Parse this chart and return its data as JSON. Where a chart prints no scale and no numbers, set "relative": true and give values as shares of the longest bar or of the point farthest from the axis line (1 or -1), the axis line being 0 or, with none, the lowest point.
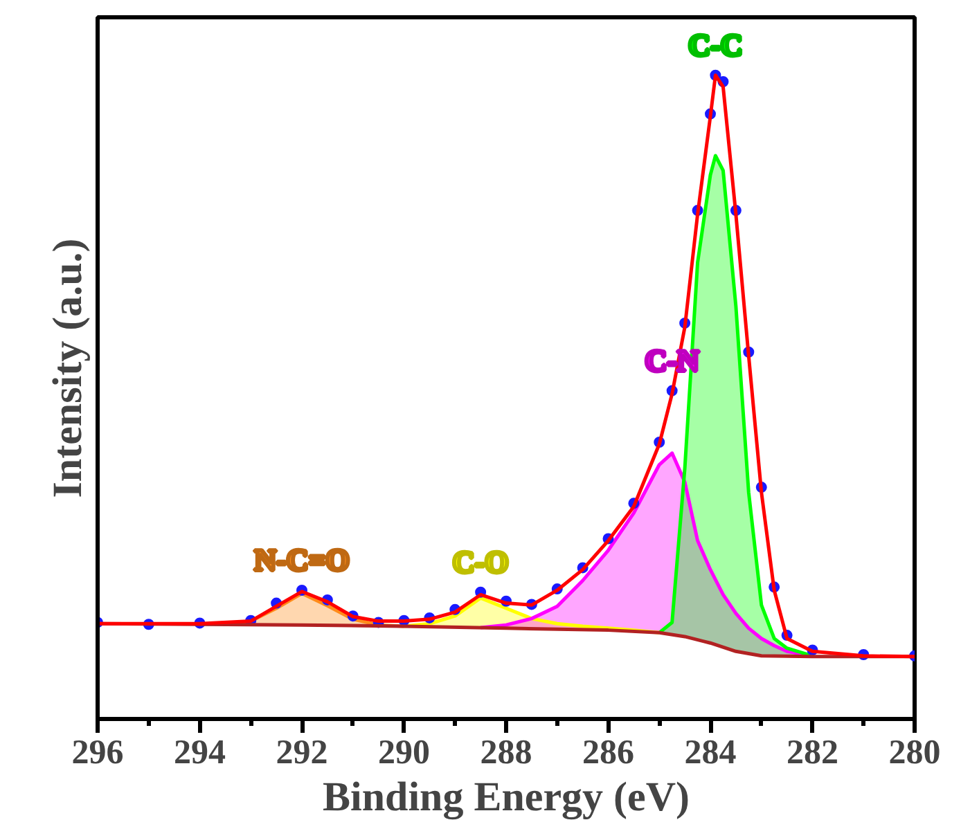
{
  "chart_data": {
    "type": "line",
    "xlabel": "Binding Energy (eV)",
    "ylabel": "Intensity (a.u.)",
    "relative": true,
    "xlim": [
      296,
      280
    ],
    "xticks": [
      296,
      294,
      292,
      290,
      288,
      286,
      284,
      282,
      280
    ],
    "tick_labels": "x",
    "grid": false,
    "series": [
      {
        "name": "N-C=O",
        "color": "#ff8c1a",
        "x": [
          293.5,
          293,
          292.5,
          292,
          291.5,
          291,
          290.5,
          290
        ],
        "values": [
          0.147,
          0.152,
          0.172,
          0.195,
          0.176,
          0.155,
          0.146,
          0.144
        ],
        "lower": [
          0.147,
          0.147,
          0.146,
          0.146,
          0.146,
          0.145,
          0.145,
          0.144
        ],
        "upper": [
          0.147,
          0.152,
          0.172,
          0.195,
          0.176,
          0.155,
          0.146,
          0.144
        ]
      },
      {
        "name": "C-O",
        "color": "#ffff00",
        "x": [
          290,
          289.5,
          289,
          288.5,
          288,
          287.5,
          287,
          286.5,
          286,
          285.5,
          285
        ],
        "values": [
          0.144,
          0.148,
          0.16,
          0.188,
          0.172,
          0.156,
          0.148,
          0.144,
          0.141,
          0.138,
          0.134
        ],
        "lower": [
          0.144,
          0.143,
          0.142,
          0.142,
          0.141,
          0.14,
          0.14,
          0.139,
          0.138,
          0.136,
          0.134
        ],
        "upper": [
          0.144,
          0.148,
          0.16,
          0.188,
          0.172,
          0.156,
          0.148,
          0.144,
          0.141,
          0.138,
          0.134
        ]
      },
      {
        "name": "C-N",
        "color": "#ff00ff",
        "x": [
          288.5,
          288,
          287.5,
          287,
          286.5,
          286,
          285.5,
          285,
          284.75,
          284.5,
          284.25,
          284,
          283.75,
          283.5,
          283.25,
          283,
          282.75,
          282.5,
          282
        ],
        "values": [
          0.142,
          0.146,
          0.156,
          0.175,
          0.215,
          0.262,
          0.32,
          0.395,
          0.413,
          0.368,
          0.277,
          0.232,
          0.193,
          0.164,
          0.141,
          0.125,
          0.114,
          0.105,
          0.098
        ],
        "lower": [
          0.142,
          0.141,
          0.14,
          0.14,
          0.139,
          0.138,
          0.136,
          0.134,
          0.131,
          0.128,
          0.123,
          0.118,
          0.111,
          0.105,
          0.101,
          0.098,
          0.098,
          0.097,
          0.097
        ],
        "upper": [
          0.142,
          0.146,
          0.156,
          0.175,
          0.215,
          0.262,
          0.32,
          0.395,
          0.413,
          0.368,
          0.277,
          0.232,
          0.193,
          0.164,
          0.141,
          0.125,
          0.114,
          0.105,
          0.098
        ]
      },
      {
        "name": "C-C",
        "color": "#00ff00",
        "x": [
          285,
          284.75,
          284.5,
          284.25,
          284,
          283.9,
          283.75,
          283.5,
          283.25,
          283,
          282.75,
          282.5,
          282
        ],
        "values": [
          0.134,
          0.15,
          0.39,
          0.709,
          0.845,
          0.875,
          0.852,
          0.641,
          0.352,
          0.177,
          0.125,
          0.11,
          0.098
        ],
        "lower": [
          0.134,
          0.131,
          0.128,
          0.123,
          0.118,
          0.116,
          0.111,
          0.105,
          0.101,
          0.098,
          0.098,
          0.097,
          0.097
        ],
        "upper": [
          0.134,
          0.15,
          0.39,
          0.709,
          0.845,
          0.875,
          0.852,
          0.641,
          0.352,
          0.177,
          0.125,
          0.11,
          0.098
        ]
      },
      {
        "type": "scatter",
        "marker": "circle",
        "color": "#1a1aff",
        "x": [
          296,
          295,
          294,
          293,
          292.5,
          292,
          291.5,
          291,
          290.5,
          290,
          289.5,
          289,
          288.5,
          288,
          287.5,
          287,
          286.5,
          286,
          285.5,
          285,
          284.75,
          284.5,
          284.25,
          284,
          283.9,
          283.75,
          283.5,
          283.25,
          283,
          282.75,
          282.5,
          282,
          281,
          280
        ],
        "values": [
          0.15,
          0.147,
          0.149,
          0.153,
          0.18,
          0.2,
          0.185,
          0.16,
          0.15,
          0.153,
          0.157,
          0.17,
          0.197,
          0.183,
          0.178,
          0.202,
          0.235,
          0.28,
          0.335,
          0.43,
          0.51,
          0.615,
          0.79,
          0.94,
          1.0,
          0.99,
          0.79,
          0.57,
          0.36,
          0.205,
          0.13,
          0.107,
          0.1,
          0.098
        ]
      },
      {
        "color": "#b22222",
        "x": [
          296,
          292,
          290,
          288,
          286,
          285,
          284.5,
          284,
          283.5,
          283,
          282,
          280
        ],
        "values": [
          0.148,
          0.146,
          0.144,
          0.141,
          0.138,
          0.134,
          0.128,
          0.118,
          0.105,
          0.098,
          0.097,
          0.097
        ]
      },
      {
        "color": "#ff0000",
        "x": [
          296,
          295,
          294,
          293,
          292.5,
          292,
          291.5,
          291,
          290.5,
          290,
          289.5,
          289,
          288.5,
          288,
          287.5,
          287,
          286.5,
          286,
          285.5,
          285,
          284.75,
          284.5,
          284.25,
          284,
          283.9,
          283.75,
          283.5,
          283.25,
          283,
          282.75,
          282.5,
          282,
          281,
          280
        ],
        "values": [
          0.148,
          0.148,
          0.148,
          0.152,
          0.175,
          0.198,
          0.182,
          0.159,
          0.152,
          0.152,
          0.155,
          0.166,
          0.193,
          0.18,
          0.177,
          0.2,
          0.232,
          0.277,
          0.33,
          0.427,
          0.505,
          0.609,
          0.784,
          0.936,
          1.0,
          0.982,
          0.784,
          0.564,
          0.352,
          0.2,
          0.125,
          0.105,
          0.098,
          0.097
        ]
      }
    ]
  }
}
